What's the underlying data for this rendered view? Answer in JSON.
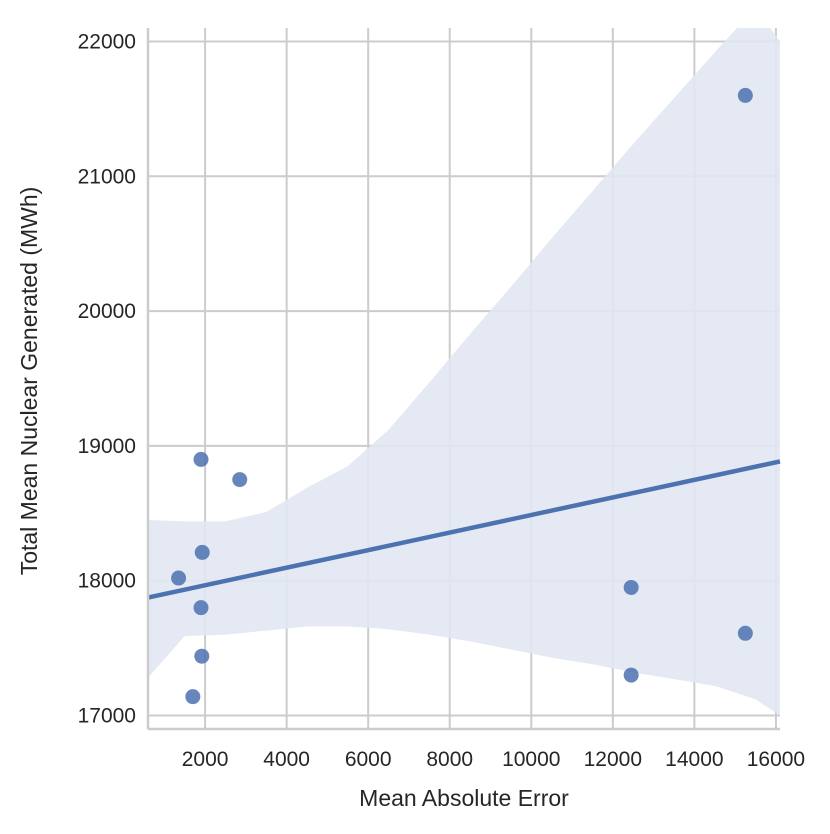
{
  "chart_data": {
    "type": "scatter",
    "title": "",
    "xlabel": "Mean Absolute Error",
    "ylabel": "Total Mean Nuclear Generated (MWh)",
    "xlim": [
      600,
      16100
    ],
    "ylim": [
      16900,
      22100
    ],
    "x_ticks": [
      2000,
      4000,
      6000,
      8000,
      10000,
      12000,
      14000,
      16000
    ],
    "y_ticks": [
      17000,
      18000,
      19000,
      20000,
      21000,
      22000
    ],
    "grid": true,
    "legend": "none",
    "colors": {
      "points": "#4c72b0",
      "line": "#4c72b0",
      "ci_band": "#e1e7f2",
      "grid": "#cccccc",
      "axes": "#cccccc"
    },
    "series": [
      {
        "points": [
          {
            "x": 1900,
            "y": 18900
          },
          {
            "x": 2850,
            "y": 18750
          },
          {
            "x": 1930,
            "y": 18210
          },
          {
            "x": 1350,
            "y": 18020
          },
          {
            "x": 1900,
            "y": 17800
          },
          {
            "x": 1920,
            "y": 17440
          },
          {
            "x": 1700,
            "y": 17140
          },
          {
            "x": 12450,
            "y": 17950
          },
          {
            "x": 12450,
            "y": 17300
          },
          {
            "x": 15250,
            "y": 21600
          },
          {
            "x": 15250,
            "y": 17610
          }
        ]
      }
    ],
    "regression_line": {
      "x": [
        600,
        16100
      ],
      "y": [
        17875,
        18885
      ]
    },
    "confidence_band": {
      "x": [
        600,
        1500,
        2500,
        3500,
        4500,
        5500,
        6500,
        7500,
        8500,
        9500,
        10500,
        11500,
        12500,
        13500,
        14500,
        15500,
        16100
      ],
      "upper": [
        18450,
        18440,
        18440,
        18510,
        18690,
        18850,
        19120,
        19470,
        19830,
        20180,
        20540,
        20890,
        21240,
        21580,
        21920,
        22250,
        22000
      ],
      "lower": [
        17280,
        17590,
        17600,
        17630,
        17660,
        17660,
        17640,
        17600,
        17550,
        17490,
        17430,
        17380,
        17320,
        17270,
        17220,
        17120,
        17000
      ]
    }
  }
}
